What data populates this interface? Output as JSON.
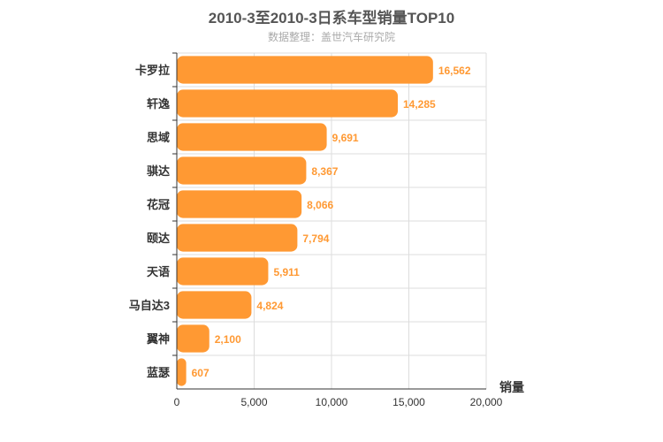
{
  "chart_data": {
    "type": "bar",
    "orientation": "horizontal",
    "title": "2010-3至2010-3日系车型销量TOP10",
    "subtitle": "数据整理：盖世汽车研究院",
    "categories": [
      "卡罗拉",
      "轩逸",
      "思域",
      "骐达",
      "花冠",
      "颐达",
      "天语",
      "马自达3",
      "翼神",
      "蓝瑟"
    ],
    "values": [
      16562,
      14285,
      9691,
      8367,
      8066,
      7794,
      5911,
      4824,
      2100,
      607
    ],
    "value_labels": [
      "16,562",
      "14,285",
      "9,691",
      "8,367",
      "8,066",
      "7,794",
      "5,911",
      "4,824",
      "2,100",
      "607"
    ],
    "xlabel": "销量",
    "xlim": [
      0,
      20000
    ],
    "xticks": [
      0,
      5000,
      10000,
      15000,
      20000
    ],
    "xtick_labels": [
      "0",
      "5,000",
      "10,000",
      "15,000",
      "20,000"
    ],
    "bar_color": "#ff9933",
    "grid": true
  }
}
